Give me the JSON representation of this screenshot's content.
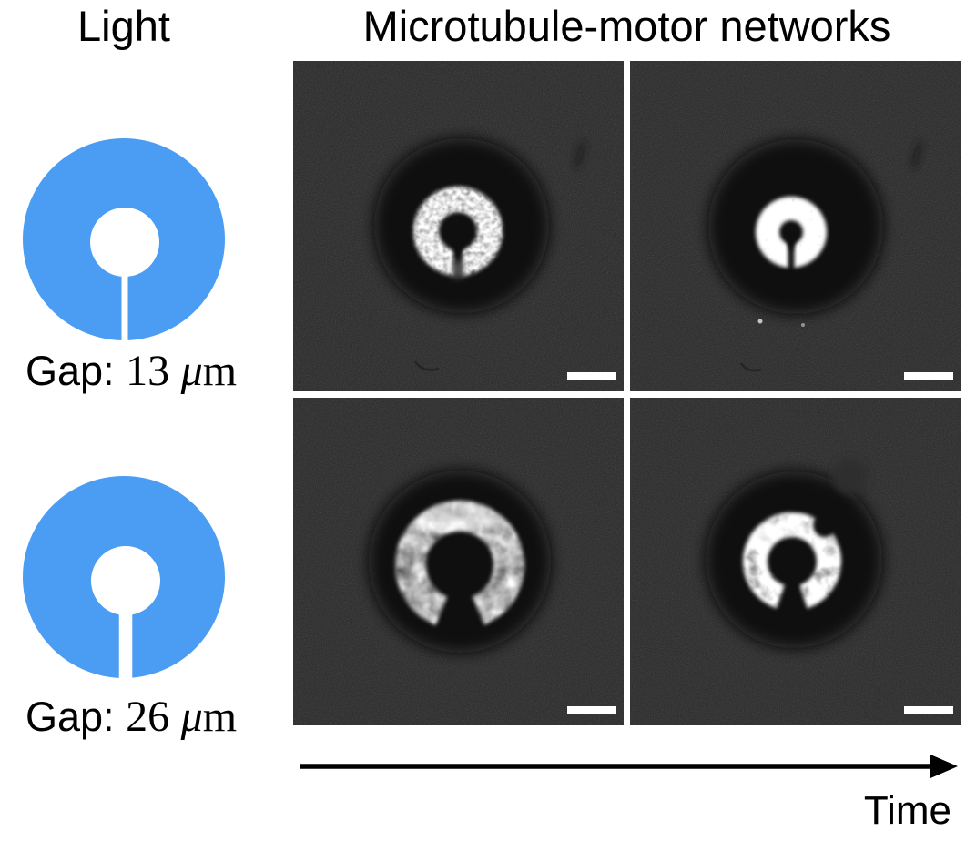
{
  "headers": {
    "light": "Light",
    "networks": "Microtubule-motor networks"
  },
  "light_patterns": [
    {
      "shape": "blue-annulus-with-radial-slit",
      "label": "Gap:",
      "value": "13",
      "unit_mu": "μ",
      "unit_m": "m"
    },
    {
      "shape": "blue-annulus-with-radial-slit",
      "label": "Gap:",
      "value": "26",
      "unit_mu": "μ",
      "unit_m": "m"
    }
  ],
  "micrographs": [
    {
      "row": 1,
      "col": 1,
      "description": "bright speckled ring network around keyhole-shaped dark center, gap 13 um, early time",
      "scalebar": true
    },
    {
      "row": 1,
      "col": 2,
      "description": "contracted brighter ring network, gap 13 um, later time",
      "scalebar": true
    },
    {
      "row": 2,
      "col": 1,
      "description": "diffuse fibrous C-shaped network open at bottom gap, gap 26 um, early time",
      "scalebar": true
    },
    {
      "row": 2,
      "col": 2,
      "description": "contracted C-shaped network open at bottom gap, gap 26 um, later time",
      "scalebar": true
    }
  ],
  "time_label": "Time",
  "colors": {
    "light_pattern_blue": "#4a9df2",
    "micrograph_background": "#2f2f2f",
    "activated_region": "#0a0a0a",
    "network_bright": "#ffffff",
    "scale_bar": "#ffffff",
    "text": "#000000",
    "page_background": "#ffffff"
  }
}
